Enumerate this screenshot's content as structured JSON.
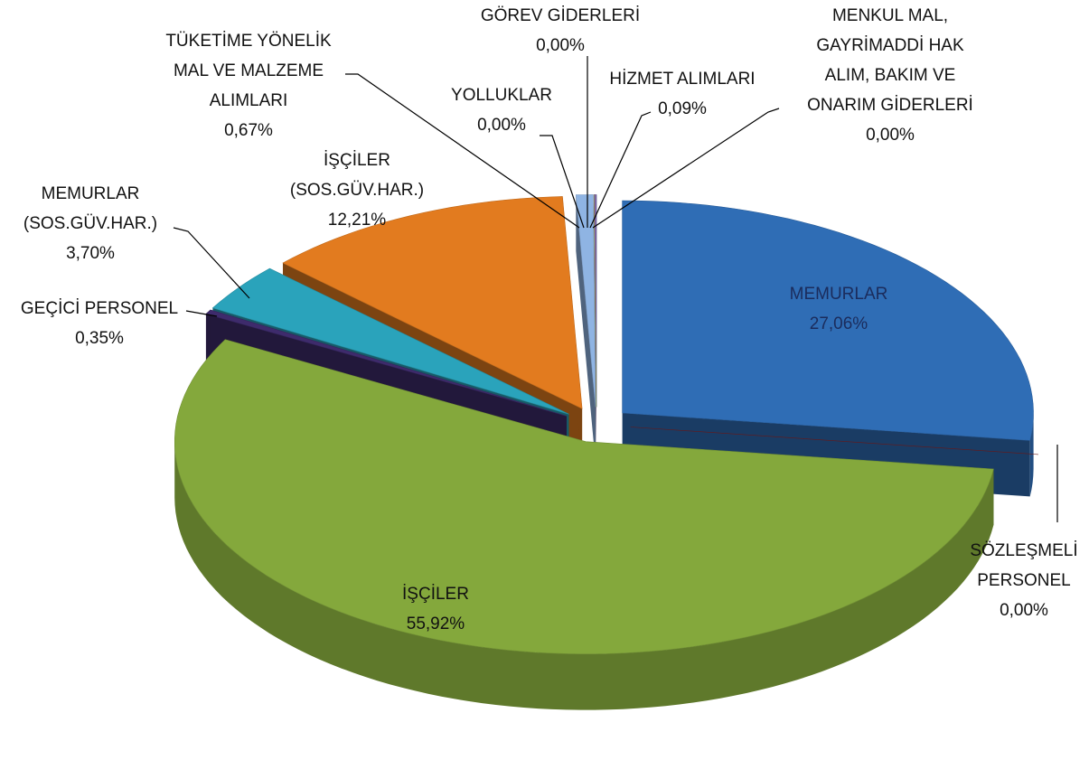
{
  "chart_data": {
    "type": "pie",
    "categories": [
      [
        "MEMURLAR"
      ],
      [
        "SÖZLEŞMELİ",
        "PERSONEL"
      ],
      [
        "İŞÇİLER"
      ],
      [
        "GEÇİCİ PERSONEL"
      ],
      [
        "MEMURLAR",
        "(SOS.GÜV.HAR.)"
      ],
      [
        "İŞÇİLER",
        "(SOS.GÜV.HAR.)"
      ],
      [
        "TÜKETİME YÖNELİK",
        "MAL VE MALZEME",
        "ALIMLARI"
      ],
      [
        "YOLLUKLAR"
      ],
      [
        "GÖREV GİDERLERİ"
      ],
      [
        "HİZMET ALIMLARI"
      ],
      [
        "MENKUL MAL,",
        "GAYRİMADDİ HAK",
        "ALIM, BAKIM VE",
        "ONARIM GİDERLERİ"
      ]
    ],
    "values": [
      27.06,
      0,
      55.92,
      0.35,
      3.7,
      12.21,
      0.67,
      0,
      0,
      0.09,
      0
    ],
    "value_labels": [
      "27,06%",
      "0,00%",
      "55,92%",
      "0,35%",
      "3,70%",
      "12,21%",
      "0,67%",
      "0,00%",
      "0,00%",
      "0,09%",
      "0,00%"
    ],
    "colors": [
      "#2f6db5",
      "#7a1c1c",
      "#84a83c",
      "#3e2b6c",
      "#2aa3bb",
      "#e27b1f",
      "#8fb4e3",
      "#c0504d",
      "#9bbb59",
      "#8064a2",
      "#4bacc6"
    ]
  }
}
